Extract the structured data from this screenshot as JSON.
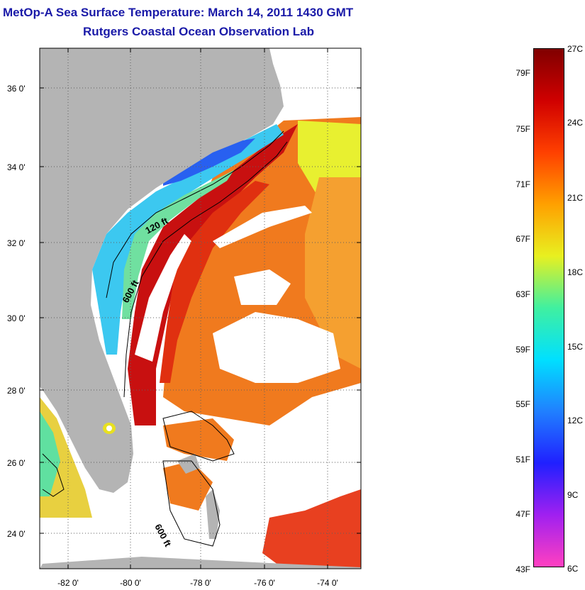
{
  "header": {
    "title": "MetOp-A Sea Surface Temperature:  March 14, 2011 1430 GMT",
    "subtitle": "Rutgers Coastal Ocean Observation Lab"
  },
  "map": {
    "lat_labels": [
      "36 0'",
      "34 0'",
      "32 0'",
      "30 0'",
      "28 0'",
      "26 0'",
      "24 0'"
    ],
    "lon_labels": [
      "-82 0'",
      "-80 0'",
      "-78 0'",
      "-76 0'",
      "-74 0'"
    ],
    "contour_labels": [
      "120 ft",
      "600 ft",
      "600 ft"
    ],
    "colors": {
      "land": "#b4b4b4",
      "cloud": "#ffffff",
      "gulf_stream": "#c81010",
      "warm_offshore": "#f07a1e",
      "mid_offshore": "#f5a030",
      "shelf_cool": "#3cc8f0",
      "yellow": "#e8f030",
      "cold": "#2860f0"
    }
  },
  "legend": {
    "fahrenheit": [
      "79F",
      "75F",
      "71F",
      "67F",
      "63F",
      "59F",
      "55F",
      "51F",
      "47F",
      "43F"
    ],
    "celsius": [
      "27C",
      "24C",
      "21C",
      "18C",
      "15C",
      "12C",
      "9C",
      "6C"
    ],
    "gradient_stops": [
      "#ff40c0",
      "#a020f0",
      "#2020ff",
      "#2080ff",
      "#00e0ff",
      "#40f0a0",
      "#e8f020",
      "#ffa000",
      "#ff4000",
      "#d00000",
      "#800000"
    ]
  }
}
